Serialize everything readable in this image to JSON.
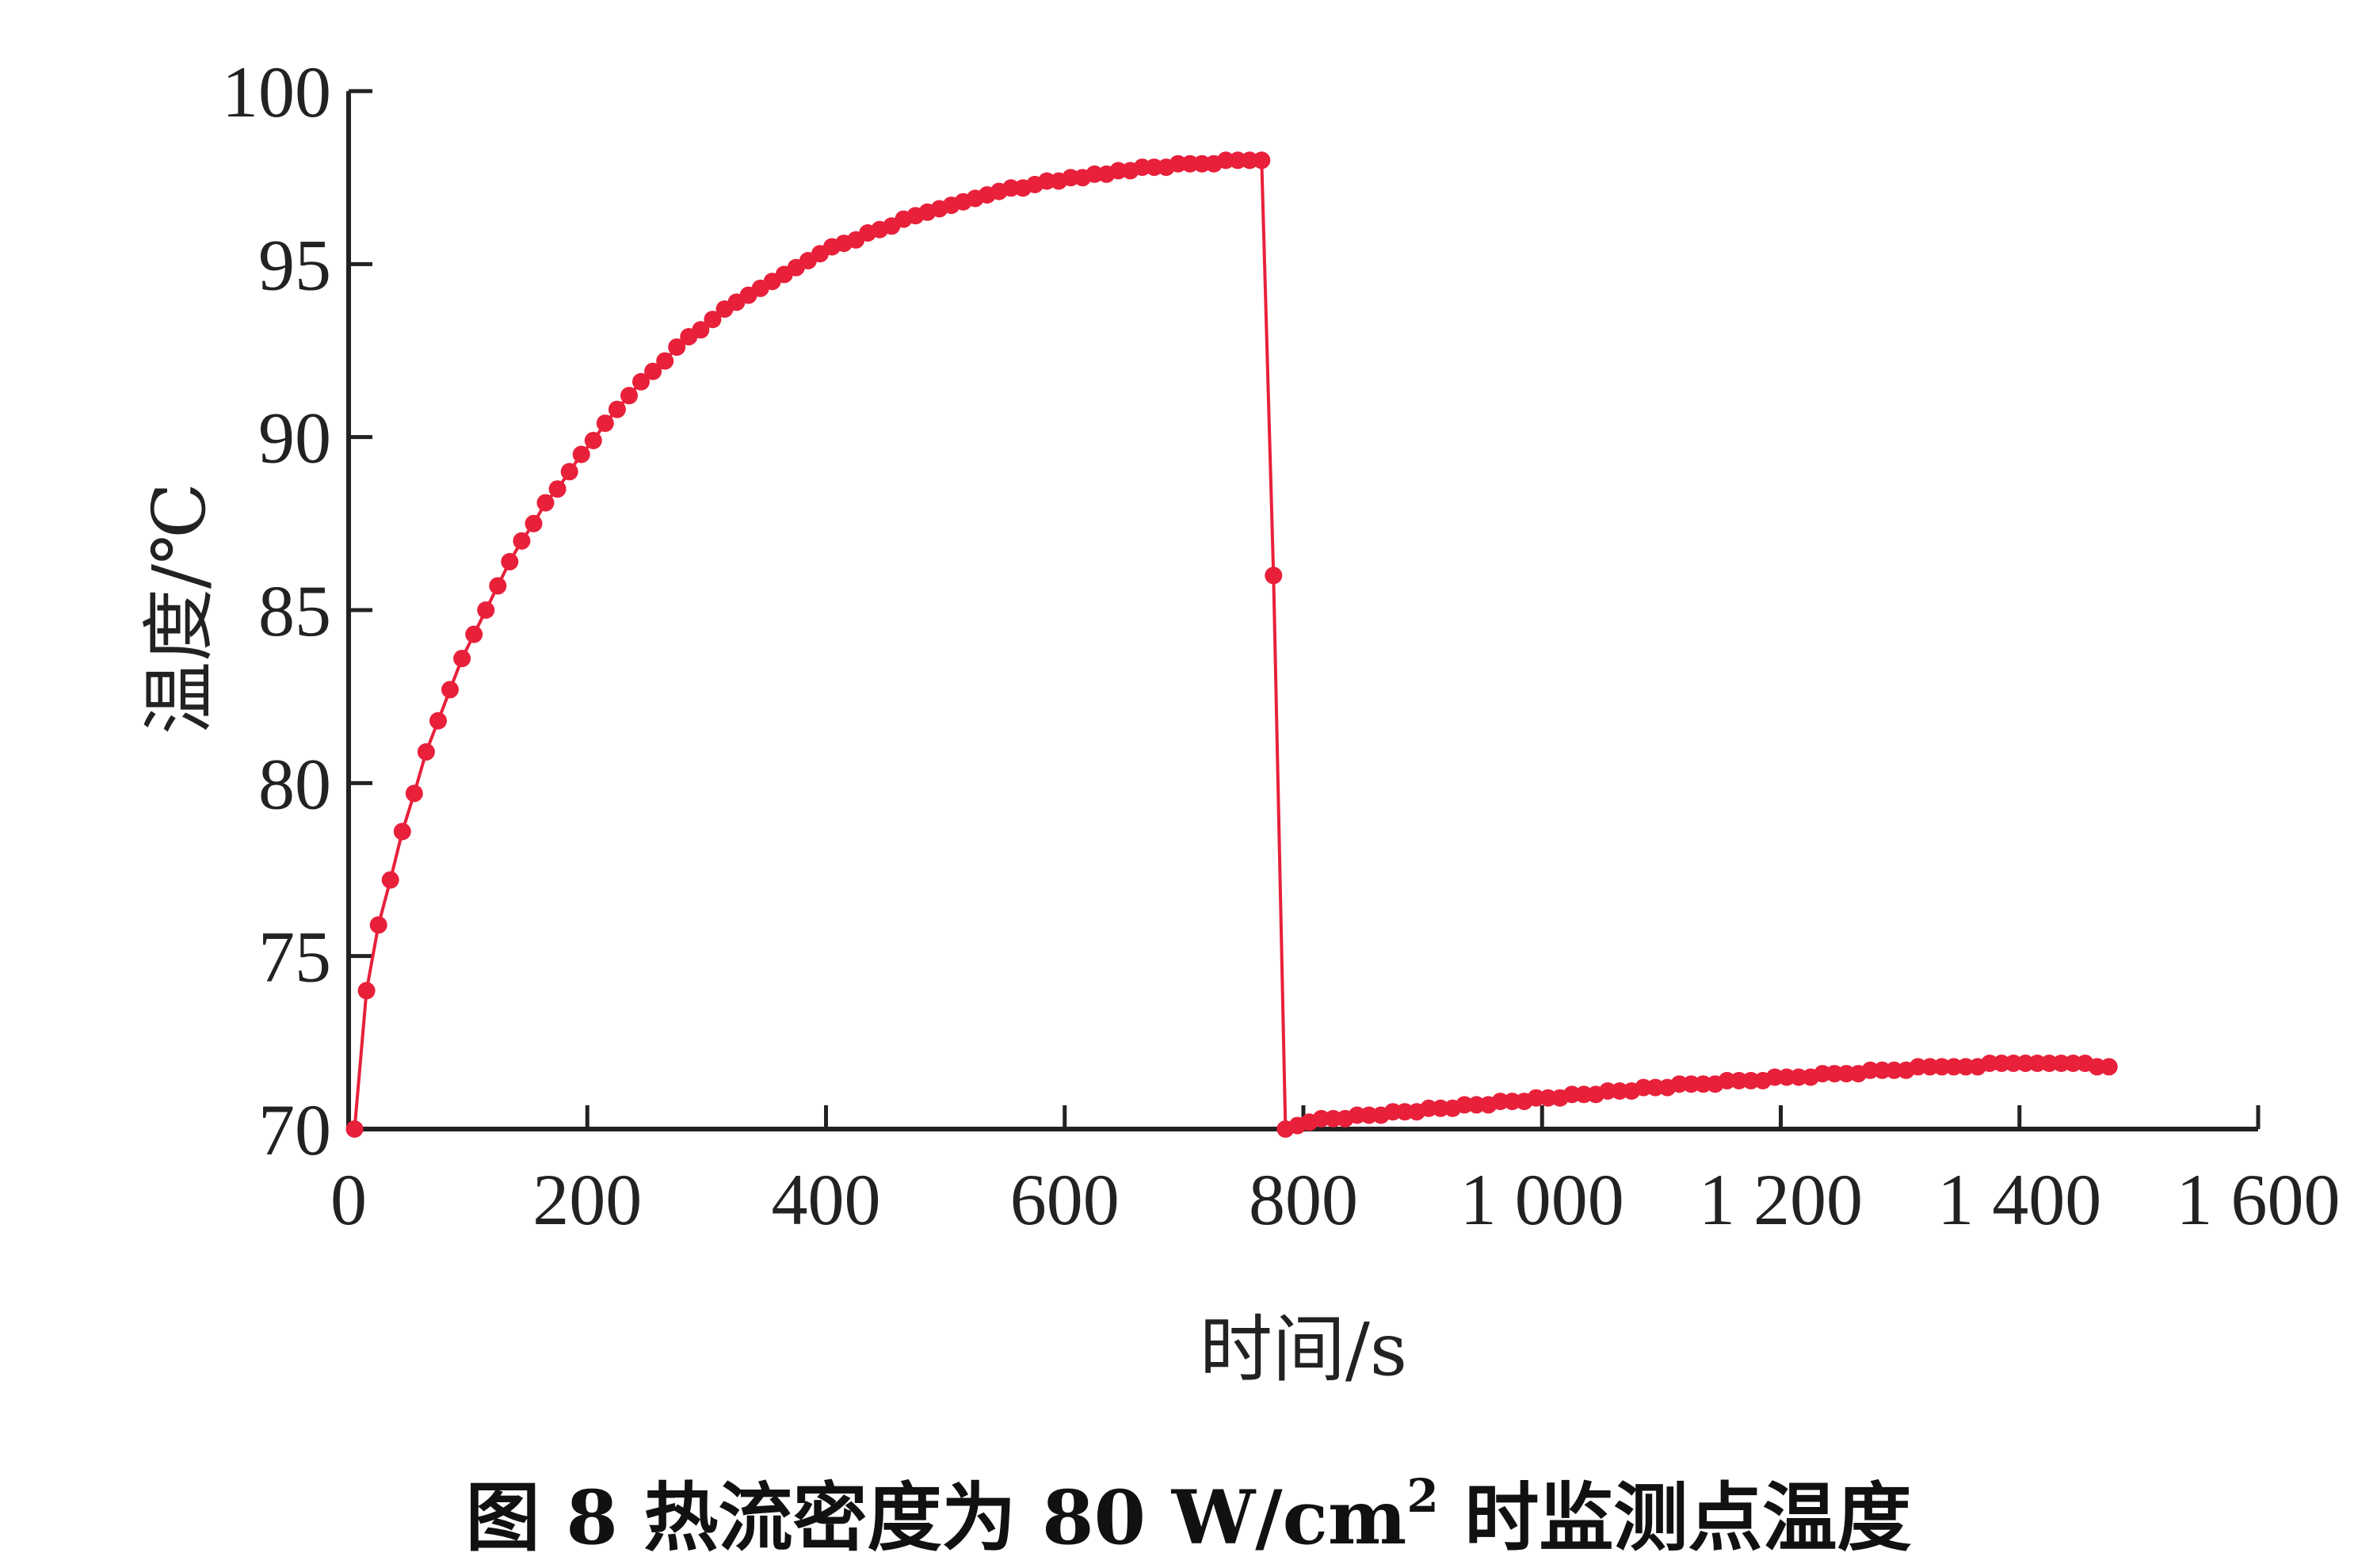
{
  "chart_data": {
    "type": "line",
    "xlabel": "时间/s",
    "ylabel": "温度/℃",
    "xlim": [
      0,
      1600
    ],
    "ylim": [
      70,
      100
    ],
    "x_ticks": [
      "0",
      "200",
      "400",
      "600",
      "800",
      "1 000",
      "1 200",
      "1 400",
      "1 600"
    ],
    "x_tick_values": [
      0,
      200,
      400,
      600,
      800,
      1000,
      1200,
      1400,
      1600
    ],
    "y_ticks": [
      "70",
      "75",
      "80",
      "85",
      "90",
      "95",
      "100"
    ],
    "y_tick_values": [
      70,
      75,
      80,
      85,
      90,
      95,
      100
    ],
    "grid": false,
    "legend": "none",
    "series_color": "#e8203a",
    "series": [
      {
        "x": [
          5,
          15,
          25,
          35,
          45,
          55,
          65,
          75,
          85,
          95,
          105,
          115,
          125,
          135,
          145,
          155,
          165,
          175,
          185,
          195,
          205,
          215,
          225,
          235,
          245,
          255,
          265,
          275,
          285,
          295,
          305,
          315,
          325,
          335,
          345,
          355,
          365,
          375,
          385,
          395,
          405,
          415,
          425,
          435,
          445,
          455,
          465,
          475,
          485,
          495,
          505,
          515,
          525,
          535,
          545,
          555,
          565,
          575,
          585,
          595,
          605,
          615,
          625,
          635,
          645,
          655,
          665,
          675,
          685,
          695,
          705,
          715,
          725,
          735,
          745,
          755,
          765,
          775,
          785,
          795,
          805,
          815,
          825,
          835,
          845,
          855,
          865,
          875,
          885,
          895,
          905,
          915,
          925,
          935,
          945,
          955,
          965,
          975,
          985,
          995,
          1005,
          1015,
          1025,
          1035,
          1045,
          1055,
          1065,
          1075,
          1085,
          1095,
          1105,
          1115,
          1125,
          1135,
          1145,
          1155,
          1165,
          1175,
          1185,
          1195,
          1205,
          1215,
          1225,
          1235,
          1245,
          1255,
          1265,
          1275,
          1285,
          1295,
          1305,
          1315,
          1325,
          1335,
          1345,
          1355,
          1365,
          1375,
          1385,
          1395,
          1405,
          1415,
          1425,
          1435,
          1445,
          1455,
          1465,
          1475
        ],
        "y": [
          70.0,
          74.0,
          75.9,
          77.2,
          78.6,
          79.7,
          80.9,
          81.8,
          82.7,
          83.6,
          84.3,
          85.0,
          85.7,
          86.4,
          87.0,
          87.5,
          88.1,
          88.5,
          89.0,
          89.5,
          89.9,
          90.4,
          90.8,
          91.2,
          91.6,
          91.9,
          92.2,
          92.6,
          92.9,
          93.1,
          93.4,
          93.7,
          93.9,
          94.1,
          94.3,
          94.5,
          94.7,
          94.9,
          95.1,
          95.3,
          95.5,
          95.6,
          95.7,
          95.9,
          96.0,
          96.1,
          96.3,
          96.4,
          96.5,
          96.6,
          96.7,
          96.8,
          96.9,
          97.0,
          97.1,
          97.2,
          97.2,
          97.3,
          97.4,
          97.4,
          97.5,
          97.5,
          97.6,
          97.6,
          97.7,
          97.7,
          97.8,
          97.8,
          97.8,
          97.9,
          97.9,
          97.9,
          97.9,
          98.0,
          98.0,
          98.0,
          98.0,
          86.0,
          70.0,
          70.1,
          70.2,
          70.3,
          70.3,
          70.3,
          70.4,
          70.4,
          70.4,
          70.5,
          70.5,
          70.5,
          70.6,
          70.6,
          70.6,
          70.7,
          70.7,
          70.7,
          70.8,
          70.8,
          70.8,
          70.9,
          70.9,
          70.9,
          71.0,
          71.0,
          71.0,
          71.1,
          71.1,
          71.1,
          71.2,
          71.2,
          71.2,
          71.3,
          71.3,
          71.3,
          71.3,
          71.4,
          71.4,
          71.4,
          71.4,
          71.5,
          71.5,
          71.5,
          71.5,
          71.6,
          71.6,
          71.6,
          71.6,
          71.7,
          71.7,
          71.7,
          71.7,
          71.8,
          71.8,
          71.8,
          71.8,
          71.8,
          71.8,
          71.9,
          71.9,
          71.9,
          71.9,
          71.9,
          71.9,
          71.9,
          71.9,
          71.9,
          71.8,
          71.8
        ]
      }
    ]
  },
  "caption": {
    "prefix": "图 8 热流密度为 80 W/cm",
    "superscript": "2",
    "suffix": " 时监测点温度"
  }
}
